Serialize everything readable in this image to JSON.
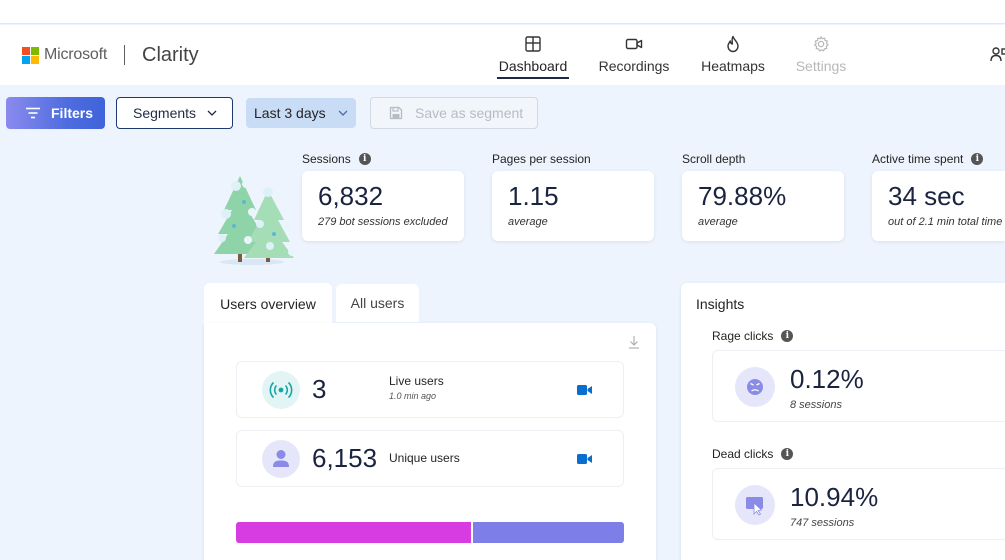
{
  "header": {
    "brand_company": "Microsoft",
    "brand_app": "Clarity",
    "nav": [
      {
        "label": "Dashboard",
        "icon": "dashboard-icon",
        "active": true
      },
      {
        "label": "Recordings",
        "icon": "video-icon"
      },
      {
        "label": "Heatmaps",
        "icon": "flame-icon"
      },
      {
        "label": "Settings",
        "icon": "gear-icon",
        "disabled": true
      }
    ]
  },
  "toolbar": {
    "filters_label": "Filters",
    "segments_label": "Segments",
    "date_range_label": "Last 3 days",
    "save_segment_label": "Save as segment"
  },
  "stats": [
    {
      "label": "Sessions",
      "value": "6,832",
      "sub": "279 bot sessions excluded",
      "info": true
    },
    {
      "label": "Pages per session",
      "value": "1.15",
      "sub": "average",
      "info": false
    },
    {
      "label": "Scroll depth",
      "value": "79.88%",
      "sub": "average",
      "info": false
    },
    {
      "label": "Active time spent",
      "value": "34 sec",
      "sub": "out of 2.1 min total time",
      "info": true
    }
  ],
  "users_panel": {
    "tabs": [
      "Users overview",
      "All users"
    ],
    "live_users": {
      "value": "3",
      "label": "Live users",
      "sub": "1.0 min ago"
    },
    "unique_users": {
      "value": "6,153",
      "label": "Unique users"
    },
    "bar_split": {
      "first_fraction": 0.61,
      "first_color": "#d63ce2",
      "second_color": "#7d7ee8"
    }
  },
  "insights": {
    "title": "Insights",
    "rage_clicks": {
      "label": "Rage clicks",
      "value": "0.12%",
      "sub": "8 sessions"
    },
    "dead_clicks": {
      "label": "Dead clicks",
      "value": "10.94%",
      "sub": "747 sessions"
    }
  },
  "colors": {
    "accent": "#4f6de0",
    "brand_dark": "#1f2a44",
    "live_teal": "#1aa5a5",
    "camera_blue": "#0a6ed1"
  }
}
